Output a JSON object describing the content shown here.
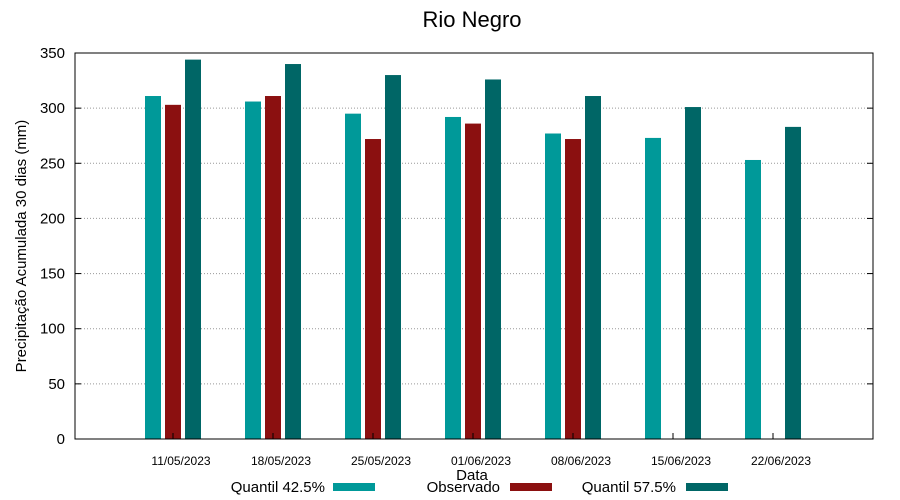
{
  "chart_data": {
    "type": "bar",
    "title": "Rio Negro",
    "xlabel": "Data",
    "ylabel": "Precipitação Acumulada 30 dias (mm)",
    "ylim": [
      0,
      350
    ],
    "yticks": [
      0,
      50,
      100,
      150,
      200,
      250,
      300,
      350
    ],
    "grid": true,
    "legend_position": "bottom",
    "categories": [
      "11/05/2023",
      "18/05/2023",
      "25/05/2023",
      "01/06/2023",
      "08/06/2023",
      "15/06/2023",
      "22/06/2023"
    ],
    "series": [
      {
        "name": "Quantil 42.5%",
        "color": "#009999",
        "values": [
          311,
          306,
          295,
          292,
          277,
          273,
          253
        ]
      },
      {
        "name": "Observado",
        "color": "#8b1010",
        "values": [
          303,
          311,
          272,
          286,
          272,
          null,
          null
        ]
      },
      {
        "name": "Quantil 57.5%",
        "color": "#006666",
        "values": [
          344,
          340,
          330,
          326,
          311,
          301,
          283
        ]
      }
    ]
  }
}
